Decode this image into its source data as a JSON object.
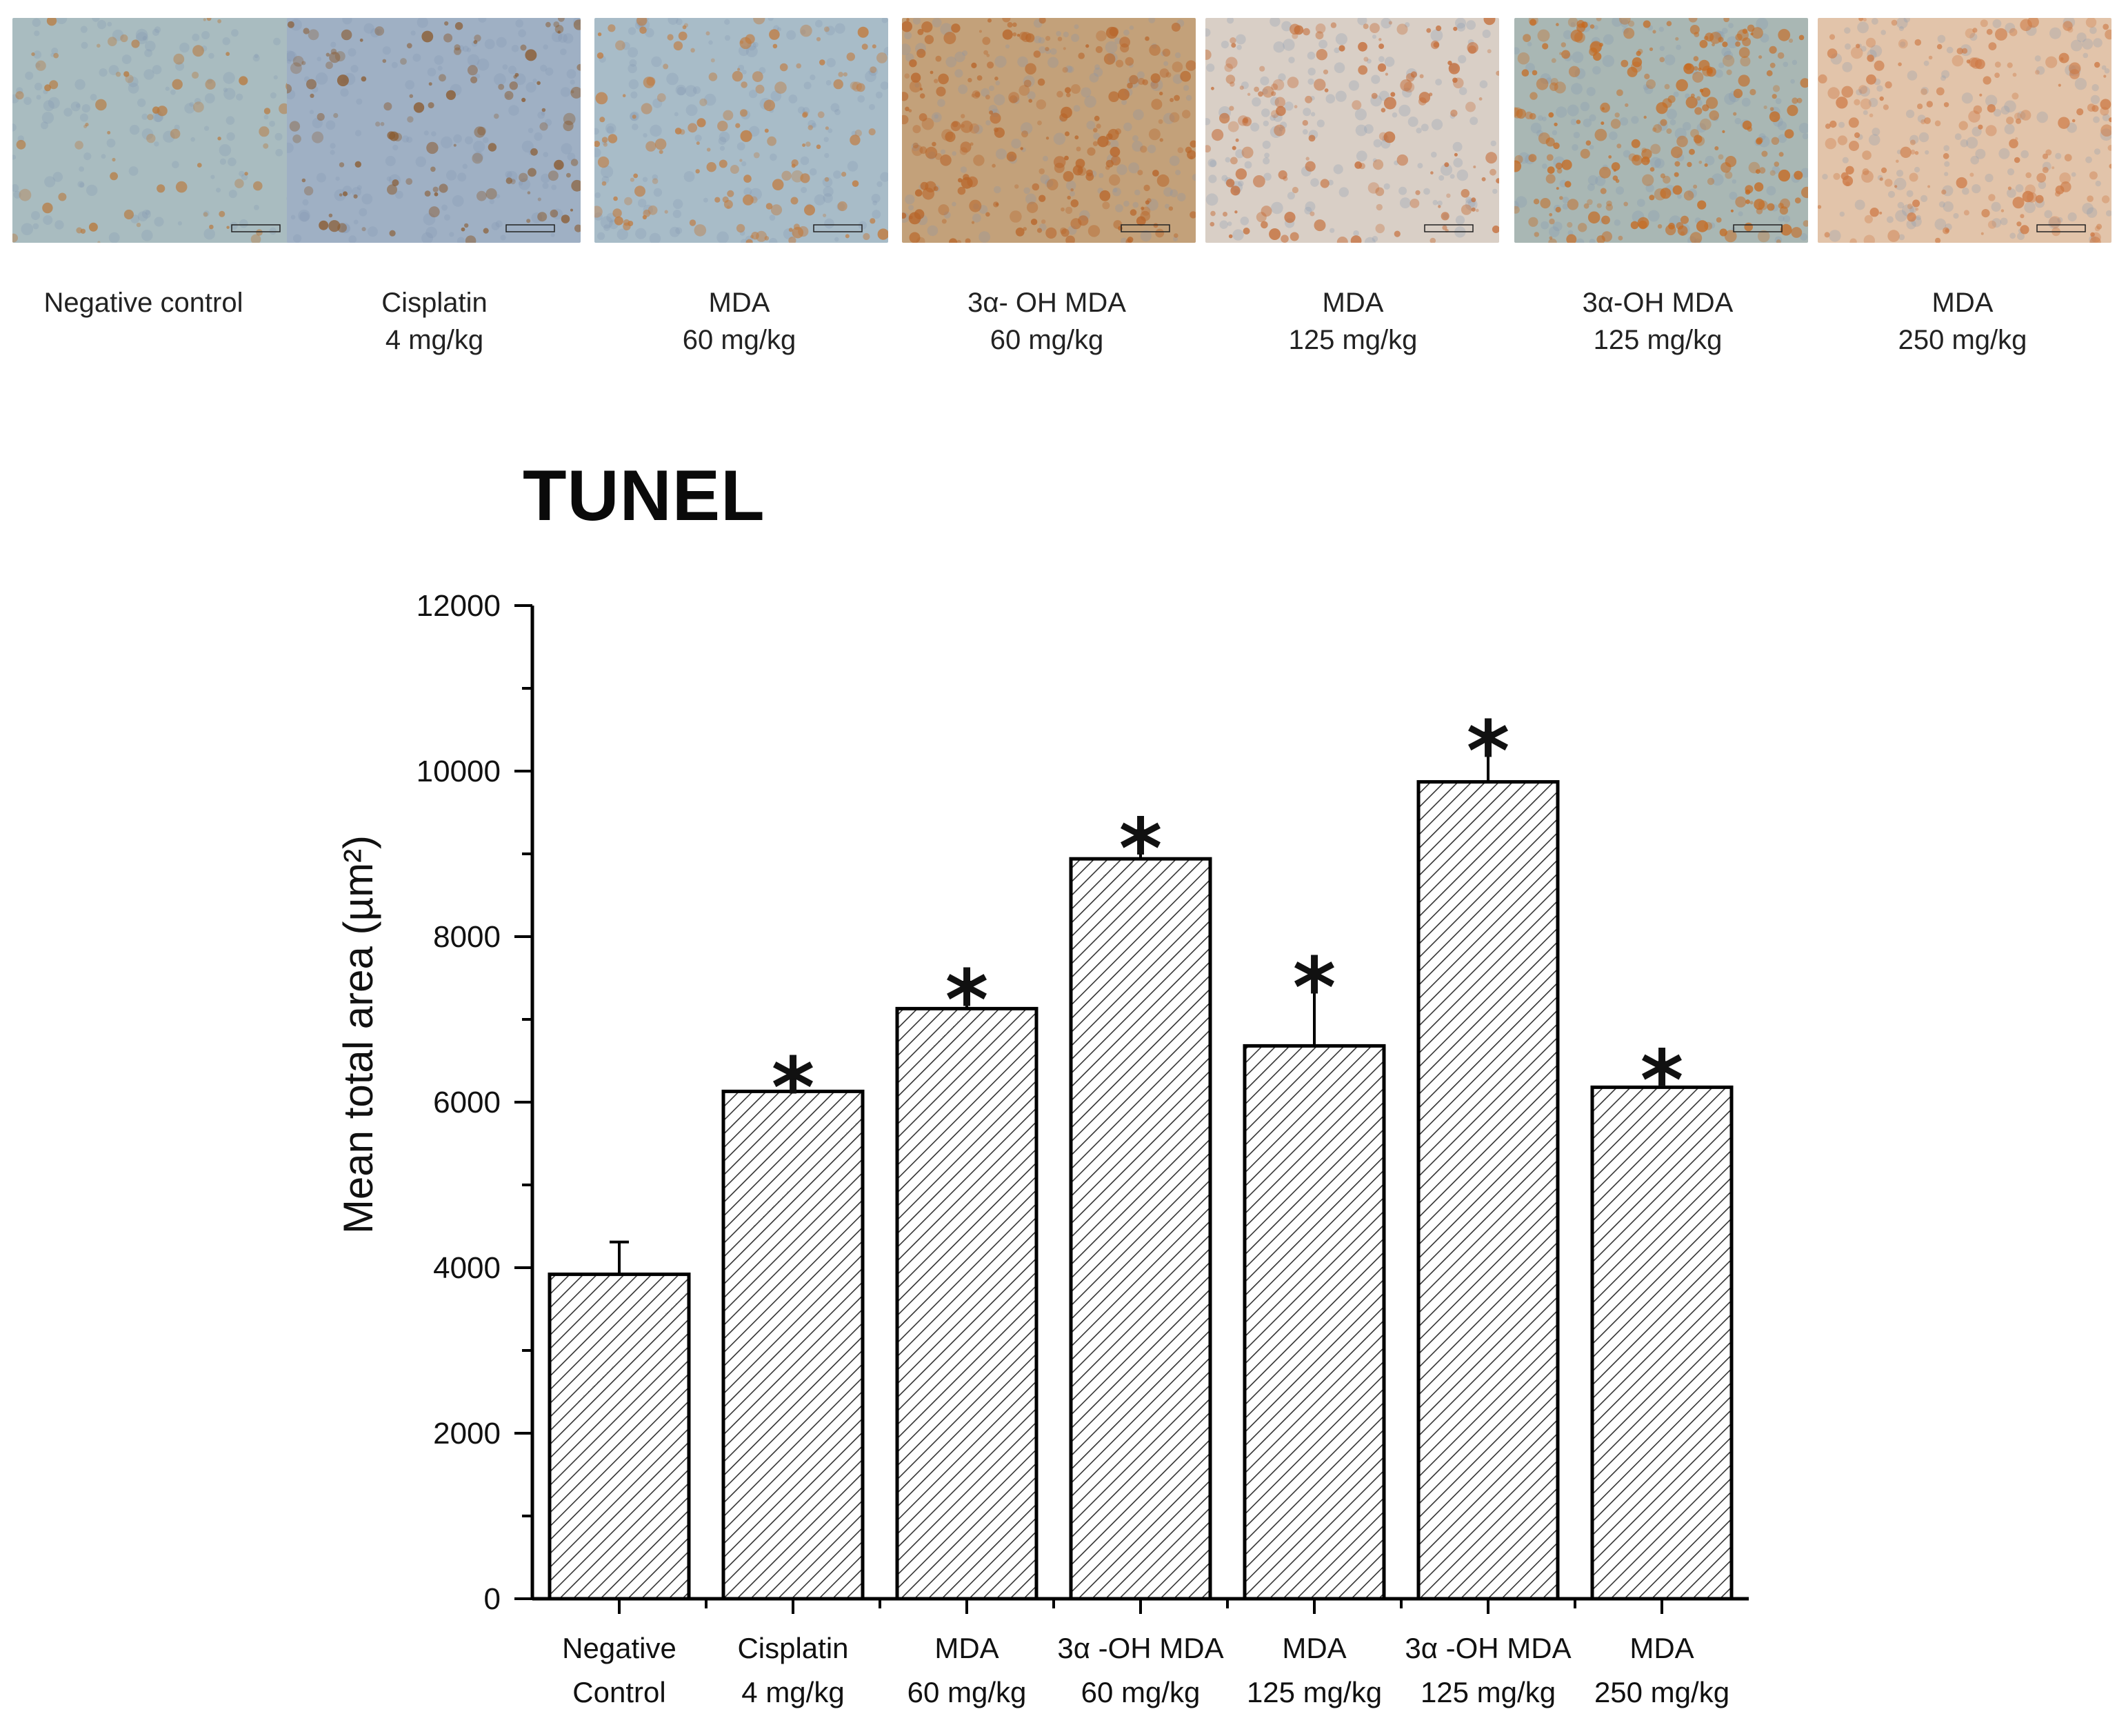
{
  "panels": [
    {
      "caption": "Negative control",
      "caption2": "",
      "base": "#a9bcc0",
      "spot": "#b9783a",
      "density": 0.05
    },
    {
      "caption": "Cisplatin",
      "caption2": "4 mg/kg",
      "base": "#9fb0c4",
      "spot": "#8a5a2e",
      "density": 0.25
    },
    {
      "caption": "MDA",
      "caption2": "60 mg/kg",
      "base": "#a8bcc8",
      "spot": "#c27a3c",
      "density": 0.35
    },
    {
      "caption": "3α- OH MDA",
      "caption2": "60 mg/kg",
      "base": "#c3a17a",
      "spot": "#b8652a",
      "density": 0.7
    },
    {
      "caption": "MDA",
      "caption2": "125 mg/kg",
      "base": "#d9cfc6",
      "spot": "#c46a34",
      "density": 0.35
    },
    {
      "caption": "3α-OH MDA",
      "caption2": "125 mg/kg",
      "base": "#a9b7b4",
      "spot": "#c6691f",
      "density": 0.85
    },
    {
      "caption": "MDA",
      "caption2": "250 mg/kg",
      "base": "#e2c4aa",
      "spot": "#cd7a46",
      "density": 0.45
    }
  ],
  "title": "TUNEL",
  "chart_data": {
    "type": "bar",
    "title": "TUNEL",
    "ylabel": "Mean total area (µm²)",
    "xlabel": "",
    "ylim": [
      0,
      12000
    ],
    "yticks": [
      "0",
      "2000",
      "4000",
      "6000",
      "8000",
      "10000",
      "12000"
    ],
    "categories": [
      {
        "line1": "Negative",
        "line2": "Control"
      },
      {
        "line1": "Cisplatin",
        "line2": "4 mg/kg"
      },
      {
        "line1": "MDA",
        "line2": "60 mg/kg"
      },
      {
        "line1": "3α -OH MDA",
        "line2": "60 mg/kg"
      },
      {
        "line1": "MDA",
        "line2": "125 mg/kg"
      },
      {
        "line1": "3α -OH MDA",
        "line2": "125 mg/kg"
      },
      {
        "line1": "MDA",
        "line2": "250 mg/kg"
      }
    ],
    "values": [
      3920,
      6130,
      7130,
      8940,
      6680,
      9870,
      6180
    ],
    "errors": [
      390,
      260,
      320,
      340,
      920,
      590,
      300
    ],
    "significance": [
      "",
      "*",
      "*",
      "*",
      "*",
      "*",
      "*"
    ],
    "pattern": "diagonal-hatch"
  }
}
